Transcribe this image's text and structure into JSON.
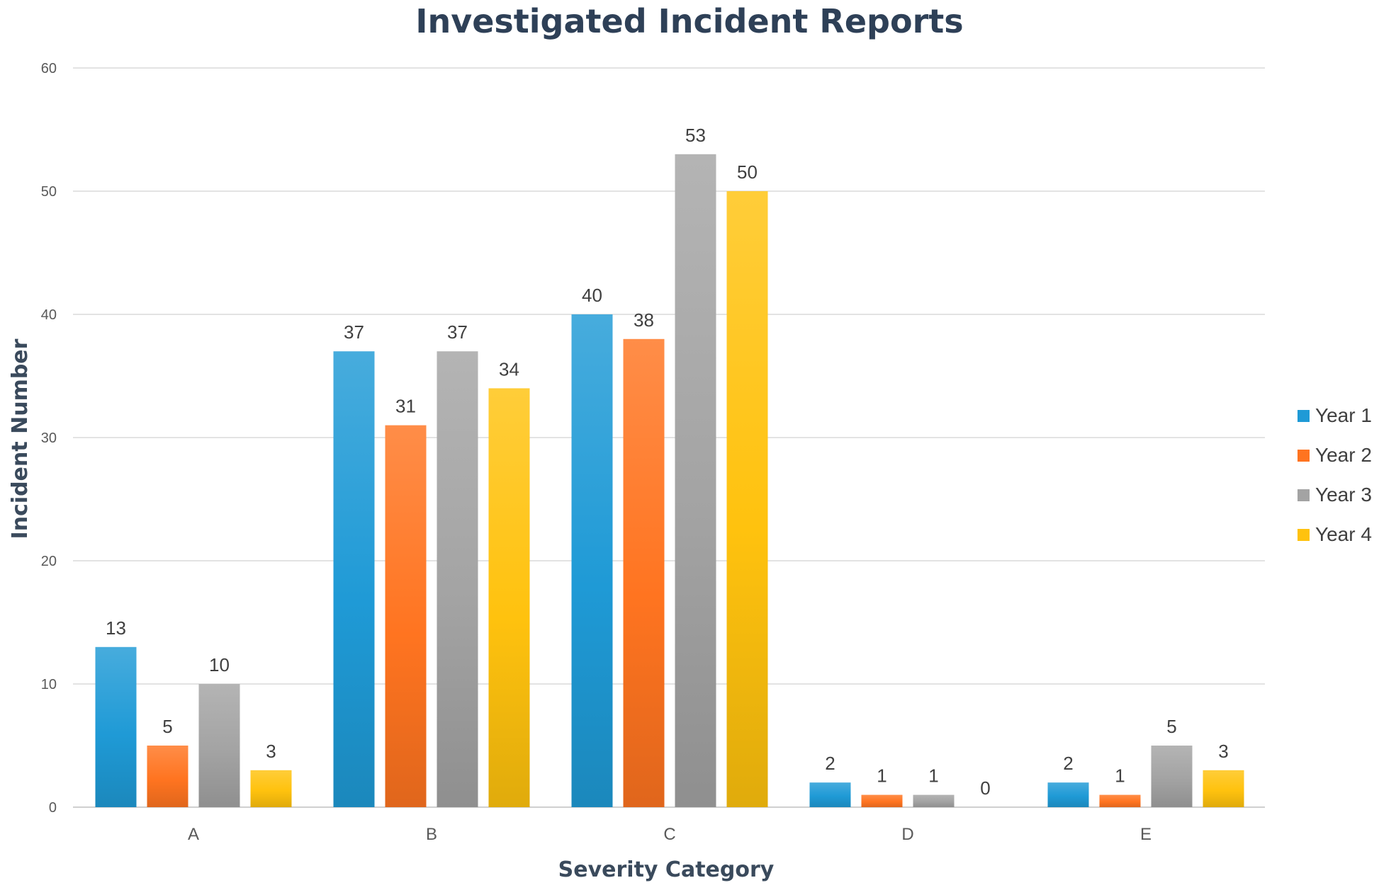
{
  "chart_data": {
    "type": "bar",
    "title": "Investigated Incident Reports",
    "xlabel": "Severity Category",
    "ylabel": "Incident Number",
    "categories": [
      "A",
      "B",
      "C",
      "D",
      "E"
    ],
    "ylim": [
      0,
      60
    ],
    "yticks": [
      0,
      10,
      20,
      30,
      40,
      50,
      60
    ],
    "grid": true,
    "legend_position": "right",
    "series": [
      {
        "name": "Year 1",
        "values": [
          13,
          37,
          40,
          2,
          2
        ],
        "color": "#1f9ad6"
      },
      {
        "name": "Year 2",
        "values": [
          5,
          31,
          38,
          1,
          1
        ],
        "color": "#ff7420"
      },
      {
        "name": "Year 3",
        "values": [
          10,
          37,
          53,
          1,
          5
        ],
        "color": "#a3a3a3"
      },
      {
        "name": "Year 4",
        "values": [
          3,
          34,
          50,
          0,
          3
        ],
        "color": "#ffc20e"
      }
    ]
  }
}
